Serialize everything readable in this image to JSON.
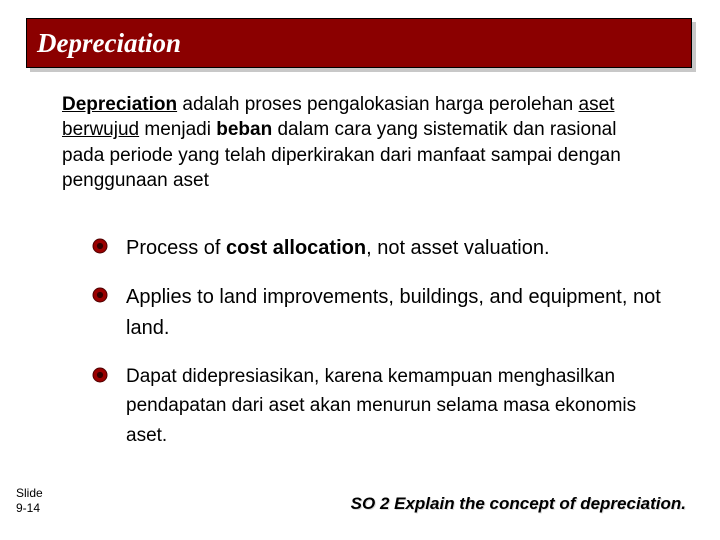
{
  "title": "Depreciation",
  "intro": {
    "t1": "Depreciation",
    "t2": " adalah proses pengalokasian harga perolehan ",
    "t3": "aset berwujud",
    "t4": " menjadi ",
    "t5": "beban",
    "t6": " dalam cara yang sistematik dan rasional pada periode yang telah diperkirakan dari manfaat sampai dengan penggunaan aset"
  },
  "bullets": [
    {
      "pre": "Process of ",
      "bold": "cost allocation",
      "post": ", not asset valuation.",
      "family": "arial"
    },
    {
      "pre": "Applies to land improvements, buildings, and equipment, not land.",
      "bold": "",
      "post": "",
      "family": "arial"
    },
    {
      "pre": "Dapat didepresiasikan, karena kemampuan menghasilkan pendapatan dari aset akan menurun selama masa ekonomis aset.",
      "bold": "",
      "post": "",
      "family": "comic"
    }
  ],
  "bullet_style": {
    "outer_fill": "#9a0000",
    "outer_stroke": "#4d0000",
    "inner_fill": "#330000"
  },
  "slide_label1": "Slide",
  "slide_label2": "9-14",
  "so_caption": "SO 2 Explain the concept of depreciation."
}
